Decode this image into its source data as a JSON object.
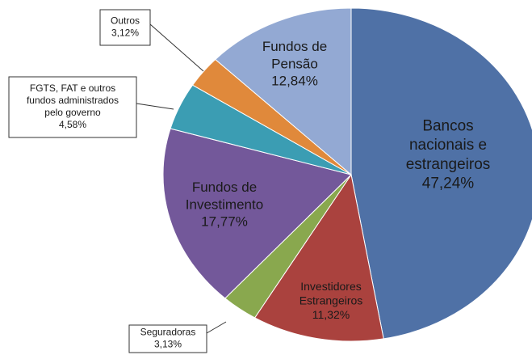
{
  "chart_data": {
    "type": "pie",
    "categories": [
      [
        "Bancos",
        "nacionais e",
        "estrangeiros"
      ],
      [
        "Investidores",
        "Estrangeiros"
      ],
      [
        "Seguradoras"
      ],
      [
        "Fundos de",
        "Investimento"
      ],
      [
        "FGTS, FAT e outros",
        "fundos administrados",
        "pelo governo"
      ],
      [
        "Outros"
      ],
      [
        "Fundos de",
        "Pensão"
      ]
    ],
    "values": [
      47.24,
      11.32,
      3.13,
      17.77,
      4.58,
      3.12,
      12.84
    ],
    "value_labels": [
      "47,24%",
      "11,32%",
      "3,13%",
      "17,77%",
      "4,58%",
      "3,12%",
      "12,84%"
    ],
    "colors": [
      "#4f71a6",
      "#aa423e",
      "#89a84e",
      "#73589a",
      "#3b9db3",
      "#e0893b",
      "#93a9d3"
    ]
  }
}
